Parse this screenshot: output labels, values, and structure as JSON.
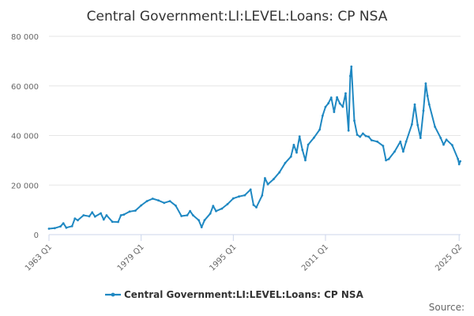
{
  "chart_data": {
    "type": "line",
    "title": "Central Government:LI:LEVEL:Loans: CP NSA",
    "xlabel": "",
    "ylabel": "",
    "source": "Source:",
    "x_tick_labels": [
      "1963 Q1",
      "1979 Q1",
      "1995 Q1",
      "2011 Q1",
      "2025 Q2"
    ],
    "y_tick_labels": [
      "0",
      "20 000",
      "40 000",
      "60 000",
      "80 000"
    ],
    "ylim": [
      0,
      80000
    ],
    "grid": "horizontal",
    "legend_position": "bottom-center",
    "series": [
      {
        "name": "Central Government:LI:LEVEL:Loans: CP NSA",
        "color": "#1f88c2",
        "points": [
          [
            1963.0,
            2400
          ],
          [
            1964.0,
            2600
          ],
          [
            1965.0,
            3300
          ],
          [
            1965.5,
            4600
          ],
          [
            1966.0,
            2800
          ],
          [
            1967.0,
            3400
          ],
          [
            1967.5,
            6500
          ],
          [
            1968.0,
            5800
          ],
          [
            1969.0,
            7800
          ],
          [
            1970.0,
            7400
          ],
          [
            1970.5,
            9000
          ],
          [
            1971.0,
            7300
          ],
          [
            1972.0,
            8600
          ],
          [
            1972.5,
            6100
          ],
          [
            1973.0,
            7800
          ],
          [
            1974.0,
            5200
          ],
          [
            1975.0,
            5100
          ],
          [
            1975.5,
            7800
          ],
          [
            1976.0,
            8100
          ],
          [
            1977.0,
            9300
          ],
          [
            1978.0,
            9700
          ],
          [
            1979.0,
            11800
          ],
          [
            1980.0,
            13500
          ],
          [
            1981.0,
            14500
          ],
          [
            1982.0,
            13800
          ],
          [
            1983.0,
            12800
          ],
          [
            1984.0,
            13500
          ],
          [
            1985.0,
            11700
          ],
          [
            1986.0,
            7500
          ],
          [
            1987.0,
            7800
          ],
          [
            1987.5,
            9500
          ],
          [
            1988.0,
            7800
          ],
          [
            1989.0,
            5800
          ],
          [
            1989.5,
            3000
          ],
          [
            1990.0,
            5800
          ],
          [
            1991.0,
            8500
          ],
          [
            1991.5,
            11600
          ],
          [
            1992.0,
            9500
          ],
          [
            1993.0,
            10500
          ],
          [
            1994.0,
            12300
          ],
          [
            1995.0,
            14600
          ],
          [
            1996.0,
            15400
          ],
          [
            1997.0,
            15900
          ],
          [
            1998.0,
            18200
          ],
          [
            1998.5,
            12000
          ],
          [
            1999.0,
            11000
          ],
          [
            2000.0,
            15800
          ],
          [
            2000.5,
            22800
          ],
          [
            2001.0,
            20300
          ],
          [
            2002.0,
            22400
          ],
          [
            2003.0,
            25100
          ],
          [
            2004.0,
            28900
          ],
          [
            2005.0,
            31500
          ],
          [
            2005.5,
            36200
          ],
          [
            2006.0,
            33100
          ],
          [
            2006.5,
            39600
          ],
          [
            2007.0,
            34200
          ],
          [
            2007.5,
            30000
          ],
          [
            2008.0,
            36300
          ],
          [
            2009.0,
            39100
          ],
          [
            2010.0,
            42400
          ],
          [
            2010.5,
            48000
          ],
          [
            2011.0,
            51500
          ],
          [
            2011.5,
            53000
          ],
          [
            2012.0,
            55300
          ],
          [
            2012.5,
            49500
          ],
          [
            2013.0,
            55400
          ],
          [
            2013.5,
            52900
          ],
          [
            2014.0,
            51600
          ],
          [
            2014.5,
            57000
          ],
          [
            2015.0,
            42000
          ],
          [
            2015.3,
            64000
          ],
          [
            2015.5,
            67800
          ],
          [
            2016.0,
            46000
          ],
          [
            2016.5,
            40300
          ],
          [
            2017.0,
            39500
          ],
          [
            2017.5,
            40800
          ],
          [
            2018.0,
            39800
          ],
          [
            2018.5,
            39500
          ],
          [
            2019.0,
            38100
          ],
          [
            2020.0,
            37500
          ],
          [
            2021.0,
            35800
          ],
          [
            2021.5,
            30000
          ],
          [
            2022.0,
            30500
          ],
          [
            2023.0,
            33500
          ],
          [
            2024.0,
            37500
          ],
          [
            2024.5,
            33500
          ],
          [
            2025.0,
            37500
          ],
          [
            2026.0,
            44500
          ],
          [
            2026.5,
            52500
          ],
          [
            2027.0,
            44200
          ],
          [
            2027.5,
            39000
          ],
          [
            2028.0,
            50000
          ],
          [
            2028.4,
            61000
          ],
          [
            2028.7,
            56000
          ],
          [
            2029.0,
            52500
          ],
          [
            2030.0,
            43500
          ],
          [
            2031.0,
            39000
          ],
          [
            2031.5,
            36300
          ],
          [
            2032.0,
            38300
          ],
          [
            2033.0,
            36100
          ],
          [
            2034.0,
            30500
          ],
          [
            2034.2,
            28400
          ],
          [
            2034.4,
            29600
          ]
        ]
      }
    ]
  }
}
